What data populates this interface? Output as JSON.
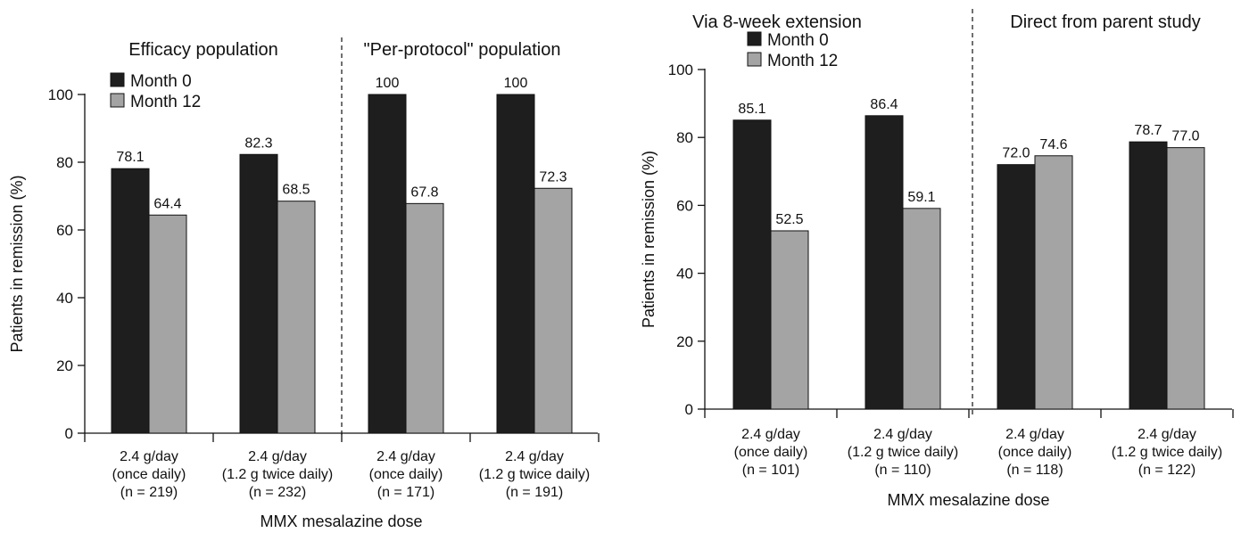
{
  "chart_data": [
    {
      "type": "bar",
      "panel": "left",
      "section_titles": [
        "Efficacy population",
        "\"Per-protocol\" population"
      ],
      "categories": [
        [
          "2.4 g/day",
          "(once daily)",
          "(n = 219)"
        ],
        [
          "2.4 g/day",
          "(1.2 g twice daily)",
          "(n = 232)"
        ],
        [
          "2.4 g/day",
          "(once daily)",
          "(n = 171)"
        ],
        [
          "2.4 g/day",
          "(1.2 g twice daily)",
          "(n = 191)"
        ]
      ],
      "series": [
        {
          "name": "Month 0",
          "color": "#1e1e1e",
          "values": [
            78.1,
            82.3,
            100,
            100
          ],
          "labels": [
            "78.1",
            "82.3",
            "100",
            "100"
          ]
        },
        {
          "name": "Month 12",
          "color": "#a4a4a4",
          "values": [
            64.4,
            68.5,
            67.8,
            72.3
          ],
          "labels": [
            "64.4",
            "68.5",
            "67.8",
            "72.3"
          ]
        }
      ],
      "yticks": [
        "0",
        "20",
        "40",
        "60",
        "80",
        "100"
      ],
      "ylim": [
        0,
        100
      ],
      "ylabel": "Patients in remission (%)",
      "xlabel": "MMX mesalazine dose",
      "legend_position": "top-left",
      "grid": false
    },
    {
      "type": "bar",
      "panel": "right",
      "section_titles": [
        "Via 8-week extension",
        "Direct from parent study"
      ],
      "categories": [
        [
          "2.4 g/day",
          "(once daily)",
          "(n = 101)"
        ],
        [
          "2.4 g/day",
          "(1.2 g twice daily)",
          "(n = 110)"
        ],
        [
          "2.4 g/day",
          "(once daily)",
          "(n = 118)"
        ],
        [
          "2.4 g/day",
          "(1.2 g twice daily)",
          "(n = 122)"
        ]
      ],
      "series": [
        {
          "name": "Month 0",
          "color": "#1e1e1e",
          "values": [
            85.1,
            86.4,
            72.0,
            78.7
          ],
          "labels": [
            "85.1",
            "86.4",
            "72.0",
            "78.7"
          ]
        },
        {
          "name": "Month 12",
          "color": "#a4a4a4",
          "values": [
            52.5,
            59.1,
            74.6,
            77.0
          ],
          "labels": [
            "52.5",
            "59.1",
            "74.6",
            "77.0"
          ]
        }
      ],
      "yticks": [
        "0",
        "20",
        "40",
        "60",
        "80",
        "100"
      ],
      "ylim": [
        0,
        100
      ],
      "ylabel": "Patients in remission (%)",
      "xlabel": "MMX mesalazine dose",
      "legend_position": "top-left",
      "grid": false
    }
  ]
}
